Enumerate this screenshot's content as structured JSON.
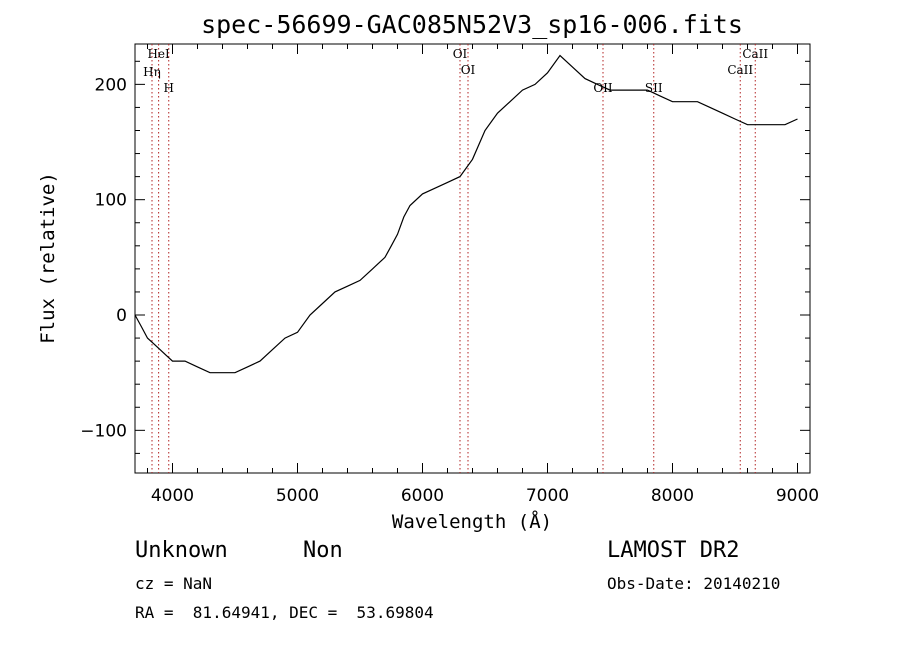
{
  "chart_data": {
    "type": "line",
    "title": "spec-56699-GAC085N52V3_sp16-006.fits",
    "xlabel": "Wavelength (Å)",
    "ylabel": "Flux (relative)",
    "xlim": [
      3700,
      9100
    ],
    "ylim": [
      -137,
      235
    ],
    "xticks": [
      4000,
      5000,
      6000,
      7000,
      8000,
      9000
    ],
    "yticks": [
      -100,
      0,
      100,
      200
    ],
    "grid": false,
    "series": [
      {
        "x": [
          3700,
          3750,
          3800,
          3850,
          3900,
          3950,
          4000,
          4100,
          4200,
          4300,
          4400,
          4500,
          4600,
          4700,
          4800,
          4900,
          5000,
          5100,
          5200,
          5300,
          5400,
          5500,
          5600,
          5700,
          5750,
          5800,
          5850,
          5900,
          6000,
          6100,
          6200,
          6300,
          6400,
          6500,
          6600,
          6700,
          6800,
          6900,
          7000,
          7100,
          7200,
          7300,
          7400,
          7500,
          7600,
          7700,
          7800,
          7900,
          8000,
          8100,
          8200,
          8300,
          8400,
          8500,
          8600,
          8700,
          8800,
          8900,
          9000
        ],
        "y": [
          0,
          -10,
          -20,
          -25,
          -30,
          -35,
          -40,
          -40,
          -45,
          -50,
          -50,
          -50,
          -45,
          -40,
          -30,
          -20,
          -15,
          0,
          10,
          20,
          25,
          30,
          40,
          50,
          60,
          70,
          85,
          95,
          105,
          110,
          115,
          120,
          135,
          160,
          175,
          185,
          195,
          200,
          210,
          225,
          215,
          205,
          200,
          195,
          195,
          195,
          195,
          190,
          185,
          185,
          185,
          180,
          175,
          170,
          165,
          165,
          165,
          165,
          170
        ]
      }
    ],
    "spectral_lines": [
      {
        "label": "HeI",
        "x": 3889
      },
      {
        "label": "Hη",
        "x": 3836
      },
      {
        "label": "H",
        "x": 3970
      },
      {
        "label": "OI",
        "x": 6300
      },
      {
        "label": "OI",
        "x": 6364
      },
      {
        "label": "OII",
        "x": 7444
      },
      {
        "label": "SII",
        "x": 7850
      },
      {
        "label": "CaII",
        "x": 8542
      },
      {
        "label": "CaII",
        "x": 8662
      }
    ]
  },
  "footer": {
    "object_type": "Unknown",
    "object_class": "Non",
    "survey": "LAMOST DR2",
    "cz": "cz = NaN",
    "obs_date": "Obs-Date: 20140210",
    "coords": "RA =  81.64941, DEC =  53.69804"
  },
  "colors": {
    "spectral_line": "#b22222",
    "ink": "#000000"
  }
}
